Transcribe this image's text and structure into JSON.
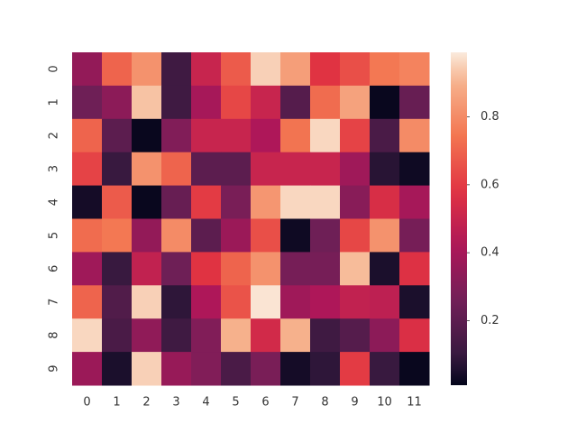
{
  "chart_data": {
    "type": "heatmap",
    "x": [
      0,
      1,
      2,
      3,
      4,
      5,
      6,
      7,
      8,
      9,
      10,
      11
    ],
    "y": [
      0,
      1,
      2,
      3,
      4,
      5,
      6,
      7,
      8,
      9
    ],
    "values": [
      [
        0.35,
        0.7,
        0.82,
        0.12,
        0.5,
        0.68,
        0.95,
        0.85,
        0.58,
        0.65,
        0.75,
        0.78
      ],
      [
        0.25,
        0.33,
        0.93,
        0.12,
        0.4,
        0.63,
        0.5,
        0.18,
        0.72,
        0.86,
        0.02,
        0.23
      ],
      [
        0.7,
        0.2,
        0.02,
        0.3,
        0.5,
        0.5,
        0.42,
        0.74,
        0.96,
        0.62,
        0.15,
        0.8
      ],
      [
        0.62,
        0.1,
        0.82,
        0.7,
        0.2,
        0.2,
        0.5,
        0.5,
        0.5,
        0.38,
        0.07,
        0.03
      ],
      [
        0.04,
        0.68,
        0.02,
        0.23,
        0.6,
        0.28,
        0.83,
        0.96,
        0.96,
        0.32,
        0.55,
        0.4
      ],
      [
        0.72,
        0.75,
        0.35,
        0.8,
        0.2,
        0.37,
        0.65,
        0.03,
        0.25,
        0.63,
        0.82,
        0.27
      ],
      [
        0.38,
        0.1,
        0.48,
        0.25,
        0.58,
        0.7,
        0.82,
        0.27,
        0.27,
        0.92,
        0.05,
        0.57
      ],
      [
        0.7,
        0.17,
        0.95,
        0.08,
        0.42,
        0.66,
        0.98,
        0.38,
        0.42,
        0.48,
        0.47,
        0.05
      ],
      [
        0.96,
        0.15,
        0.34,
        0.12,
        0.3,
        0.9,
        0.53,
        0.9,
        0.12,
        0.18,
        0.33,
        0.56
      ],
      [
        0.37,
        0.05,
        0.95,
        0.36,
        0.3,
        0.15,
        0.28,
        0.04,
        0.08,
        0.6,
        0.1,
        0.02
      ]
    ],
    "cmap": "rocket",
    "clim": [
      0.01,
      0.99
    ],
    "cticks": [
      0.2,
      0.4,
      0.6,
      0.8
    ]
  }
}
